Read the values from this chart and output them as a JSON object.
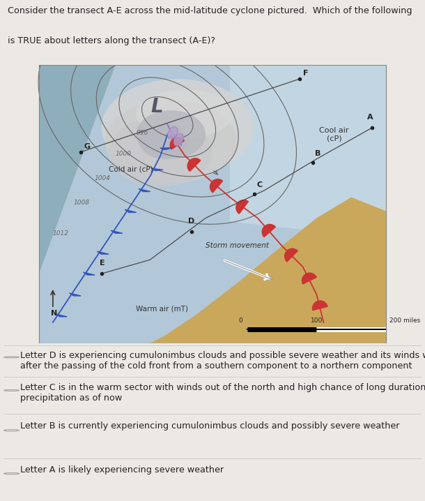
{
  "title_line1": "Consider the transect A-E across the mid-latitude cyclone pictured.  Which of the following",
  "title_line2": "is TRUE about letters along the transect (A-E)?",
  "bg_color": "#ece9e5",
  "options": [
    "Letter A is likely experiencing severe weather",
    "Letter B is currently experiencing cumulonimbus clouds and possibly severe weather",
    "Letter C is in the warm sector with winds out of the north and high chance of long duration\nprecipitation as of now",
    "Letter D is experiencing cumulonimbus clouds and possible severe weather and its winds will shift\nafter the passing of the cold front from a southern component to a northern component"
  ],
  "option_circle_color": "#aaaaaa",
  "divider_color": "#cccccc",
  "text_color": "#222222",
  "isobar_color": "#666666",
  "cold_front_color": "#3355bb",
  "warm_front_color": "#cc3333",
  "font_size_title": 9.2,
  "font_size_option": 9.2,
  "map_ocean_color": "#b0c8d8",
  "map_land_brown": "#c8a85a",
  "map_land_blue_gray": "#8aacbc",
  "map_cloud_light": "#d8d8d8",
  "map_cloud_dark": "#b8b8c0",
  "low_label_color": "#555566",
  "cool_air_label": "Cool air\n(cP)",
  "cold_air_label": "Cold air (cP)",
  "warm_air_label": "Warm air (mT)",
  "storm_label": "Storm movement"
}
